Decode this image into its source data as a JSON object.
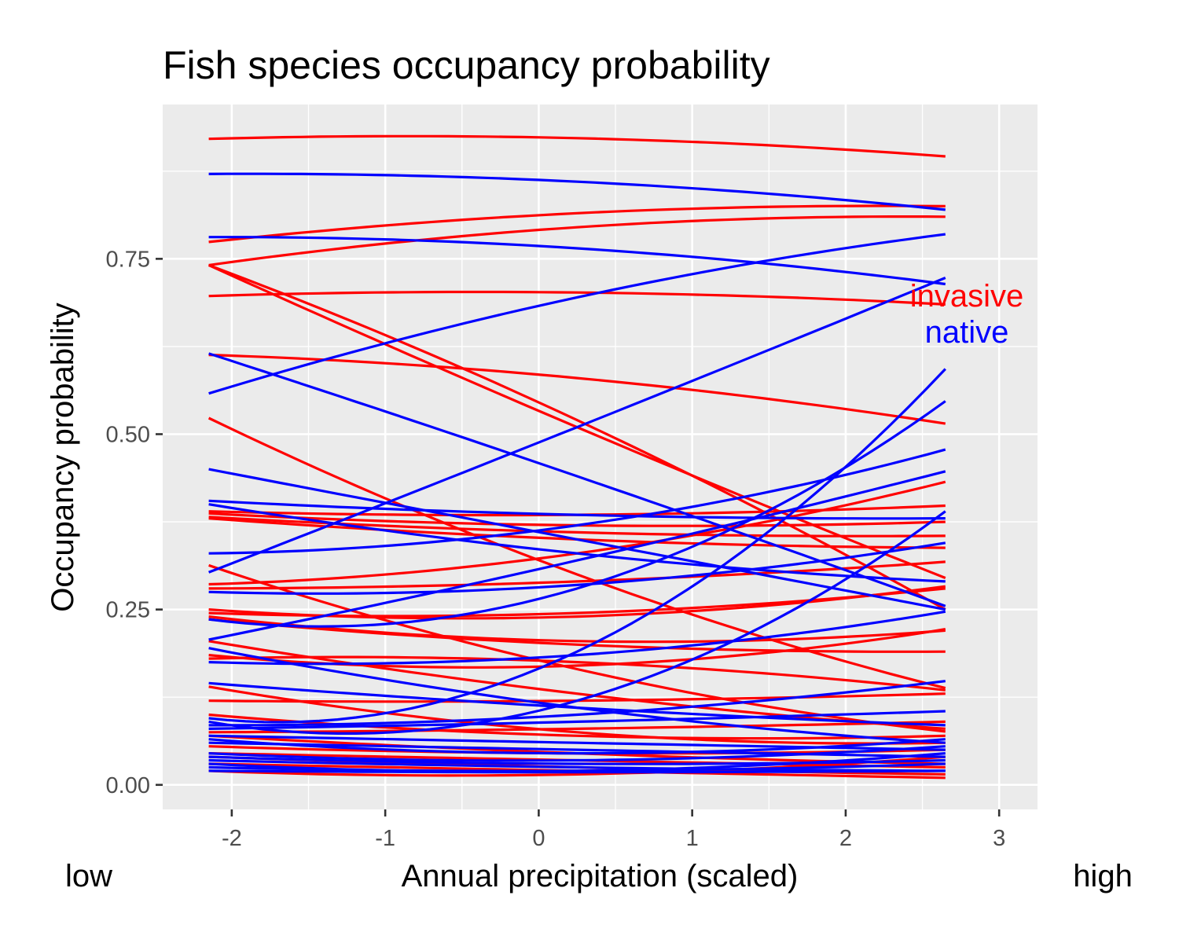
{
  "chart_data": {
    "type": "line",
    "title": "Fish species occupancy probability",
    "xlabel": "Annual precipitation (scaled)",
    "ylabel": "Occupancy probability",
    "xlim": [
      -2.45,
      3.25
    ],
    "ylim": [
      -0.035,
      0.97
    ],
    "x_ticks": [
      -2,
      -1,
      0,
      1,
      2,
      3
    ],
    "x_tick_labels": [
      "-2",
      "-1",
      "0",
      "1",
      "2",
      "3"
    ],
    "y_ticks": [
      0,
      0.25,
      0.5,
      0.75
    ],
    "y_tick_labels": [
      "0.00",
      "0.25",
      "0.50",
      "0.75"
    ],
    "x_range_of_curves": [
      -2.15,
      2.65
    ],
    "grid": true,
    "panel_background": "#ebebeb",
    "annotations": [
      {
        "text": "invasive",
        "color": "#ff0000"
      },
      {
        "text": "native",
        "color": "#0000ff"
      }
    ],
    "margin_labels": {
      "left": "low",
      "right": "high"
    },
    "colors": {
      "invasive": "#ff0000",
      "native": "#0000ff"
    },
    "series": [
      {
        "group": "invasive",
        "points": [
          [
            -2.15,
            0.921
          ],
          [
            0.25,
            0.922
          ],
          [
            2.65,
            0.896
          ]
        ]
      },
      {
        "group": "invasive",
        "points": [
          [
            -2.15,
            0.774
          ],
          [
            0.25,
            0.815
          ],
          [
            2.65,
            0.825
          ]
        ]
      },
      {
        "group": "invasive",
        "points": [
          [
            -2.15,
            0.741
          ],
          [
            0.25,
            0.795
          ],
          [
            2.65,
            0.81
          ]
        ]
      },
      {
        "group": "invasive",
        "points": [
          [
            -2.15,
            0.741
          ],
          [
            0.25,
            0.52
          ],
          [
            2.65,
            0.25
          ]
        ]
      },
      {
        "group": "invasive",
        "points": [
          [
            -2.15,
            0.741
          ],
          [
            0.25,
            0.51
          ],
          [
            2.65,
            0.295
          ]
        ]
      },
      {
        "group": "invasive",
        "points": [
          [
            -2.15,
            0.697
          ],
          [
            0.25,
            0.702
          ],
          [
            2.65,
            0.685
          ]
        ]
      },
      {
        "group": "invasive",
        "points": [
          [
            -2.15,
            0.613
          ],
          [
            0.25,
            0.58
          ],
          [
            2.65,
            0.515
          ]
        ]
      },
      {
        "group": "invasive",
        "points": [
          [
            -2.15,
            0.523
          ],
          [
            0.25,
            0.3
          ],
          [
            2.65,
            0.138
          ]
        ]
      },
      {
        "group": "invasive",
        "points": [
          [
            -2.15,
            0.39
          ],
          [
            0.25,
            0.385
          ],
          [
            2.65,
            0.398
          ]
        ]
      },
      {
        "group": "invasive",
        "points": [
          [
            -2.15,
            0.387
          ],
          [
            0.25,
            0.37
          ],
          [
            2.65,
            0.375
          ]
        ]
      },
      {
        "group": "invasive",
        "points": [
          [
            -2.15,
            0.382
          ],
          [
            0.25,
            0.36
          ],
          [
            2.65,
            0.355
          ]
        ]
      },
      {
        "group": "invasive",
        "points": [
          [
            -2.15,
            0.38
          ],
          [
            0.25,
            0.35
          ],
          [
            2.65,
            0.338
          ]
        ]
      },
      {
        "group": "invasive",
        "points": [
          [
            -2.15,
            0.286
          ],
          [
            0.25,
            0.33
          ],
          [
            2.65,
            0.432
          ]
        ]
      },
      {
        "group": "invasive",
        "points": [
          [
            -2.15,
            0.28
          ],
          [
            0.25,
            0.29
          ],
          [
            2.65,
            0.318
          ]
        ]
      },
      {
        "group": "invasive",
        "points": [
          [
            -2.15,
            0.313
          ],
          [
            0.25,
            0.165
          ],
          [
            2.65,
            0.076
          ]
        ]
      },
      {
        "group": "invasive",
        "points": [
          [
            -2.15,
            0.25
          ],
          [
            0.25,
            0.24
          ],
          [
            2.65,
            0.283
          ]
        ]
      },
      {
        "group": "invasive",
        "points": [
          [
            -2.15,
            0.245
          ],
          [
            0.25,
            0.245
          ],
          [
            2.65,
            0.28
          ]
        ]
      },
      {
        "group": "invasive",
        "points": [
          [
            -2.15,
            0.24
          ],
          [
            0.25,
            0.205
          ],
          [
            2.65,
            0.22
          ]
        ]
      },
      {
        "group": "invasive",
        "points": [
          [
            -2.15,
            0.236
          ],
          [
            0.25,
            0.2
          ],
          [
            2.65,
            0.19
          ]
        ]
      },
      {
        "group": "invasive",
        "points": [
          [
            -2.15,
            0.205
          ],
          [
            0.25,
            0.13
          ],
          [
            2.65,
            0.08
          ]
        ]
      },
      {
        "group": "invasive",
        "points": [
          [
            -2.15,
            0.185
          ],
          [
            0.25,
            0.17
          ],
          [
            2.65,
            0.222
          ]
        ]
      },
      {
        "group": "invasive",
        "points": [
          [
            -2.15,
            0.18
          ],
          [
            0.25,
            0.175
          ],
          [
            2.65,
            0.135
          ]
        ]
      },
      {
        "group": "invasive",
        "points": [
          [
            -2.15,
            0.14
          ],
          [
            0.25,
            0.075
          ],
          [
            2.65,
            0.06
          ]
        ]
      },
      {
        "group": "invasive",
        "points": [
          [
            -2.15,
            0.12
          ],
          [
            0.25,
            0.12
          ],
          [
            2.65,
            0.13
          ]
        ]
      },
      {
        "group": "invasive",
        "points": [
          [
            -2.15,
            0.1
          ],
          [
            0.25,
            0.07
          ],
          [
            2.65,
            0.07
          ]
        ]
      },
      {
        "group": "invasive",
        "points": [
          [
            -2.15,
            0.075
          ],
          [
            0.25,
            0.08
          ],
          [
            2.65,
            0.09
          ]
        ]
      },
      {
        "group": "invasive",
        "points": [
          [
            -2.15,
            0.07
          ],
          [
            0.25,
            0.045
          ],
          [
            2.65,
            0.03
          ]
        ]
      },
      {
        "group": "invasive",
        "points": [
          [
            -2.15,
            0.055
          ],
          [
            0.25,
            0.045
          ],
          [
            2.65,
            0.05
          ]
        ]
      },
      {
        "group": "invasive",
        "points": [
          [
            -2.15,
            0.045
          ],
          [
            0.25,
            0.035
          ],
          [
            2.65,
            0.025
          ]
        ]
      },
      {
        "group": "invasive",
        "points": [
          [
            -2.15,
            0.04
          ],
          [
            0.25,
            0.025
          ],
          [
            2.65,
            0.015
          ]
        ]
      },
      {
        "group": "invasive",
        "points": [
          [
            -2.15,
            0.03
          ],
          [
            0.25,
            0.02
          ],
          [
            2.65,
            0.01
          ]
        ]
      },
      {
        "group": "invasive",
        "points": [
          [
            -2.15,
            0.02
          ],
          [
            0.25,
            0.015
          ],
          [
            2.65,
            0.04
          ]
        ]
      },
      {
        "group": "native",
        "points": [
          [
            -2.15,
            0.871
          ],
          [
            0.25,
            0.86
          ],
          [
            2.65,
            0.82
          ]
        ]
      },
      {
        "group": "native",
        "points": [
          [
            -2.15,
            0.781
          ],
          [
            0.25,
            0.765
          ],
          [
            2.65,
            0.714
          ]
        ]
      },
      {
        "group": "native",
        "points": [
          [
            -2.15,
            0.558
          ],
          [
            0.25,
            0.695
          ],
          [
            2.65,
            0.785
          ]
        ]
      },
      {
        "group": "native",
        "points": [
          [
            -2.15,
            0.615
          ],
          [
            0.25,
            0.44
          ],
          [
            2.65,
            0.255
          ]
        ]
      },
      {
        "group": "native",
        "points": [
          [
            -2.15,
            0.303
          ],
          [
            0.25,
            0.51
          ],
          [
            2.65,
            0.723
          ]
        ]
      },
      {
        "group": "native",
        "points": [
          [
            -2.15,
            0.45
          ],
          [
            0.25,
            0.35
          ],
          [
            2.65,
            0.25
          ]
        ]
      },
      {
        "group": "native",
        "points": [
          [
            -2.15,
            0.405
          ],
          [
            0.25,
            0.385
          ],
          [
            2.65,
            0.38
          ]
        ]
      },
      {
        "group": "native",
        "points": [
          [
            -2.15,
            0.4
          ],
          [
            0.25,
            0.33
          ],
          [
            2.65,
            0.29
          ]
        ]
      },
      {
        "group": "native",
        "points": [
          [
            -2.15,
            0.33
          ],
          [
            0.25,
            0.37
          ],
          [
            2.65,
            0.478
          ]
        ]
      },
      {
        "group": "native",
        "points": [
          [
            -2.15,
            0.275
          ],
          [
            0.25,
            0.285
          ],
          [
            2.65,
            0.345
          ]
        ]
      },
      {
        "group": "native",
        "points": [
          [
            -2.15,
            0.236
          ],
          [
            0.25,
            0.28
          ],
          [
            2.65,
            0.547
          ]
        ]
      },
      {
        "group": "native",
        "points": [
          [
            -2.15,
            0.207
          ],
          [
            0.25,
            0.32
          ],
          [
            2.65,
            0.447
          ]
        ]
      },
      {
        "group": "native",
        "points": [
          [
            -2.15,
            0.195
          ],
          [
            0.25,
            0.11
          ],
          [
            2.65,
            0.06
          ]
        ]
      },
      {
        "group": "native",
        "points": [
          [
            -2.15,
            0.175
          ],
          [
            0.25,
            0.185
          ],
          [
            2.65,
            0.247
          ]
        ]
      },
      {
        "group": "native",
        "points": [
          [
            -2.15,
            0.145
          ],
          [
            0.25,
            0.11
          ],
          [
            2.65,
            0.085
          ]
        ]
      },
      {
        "group": "native",
        "points": [
          [
            -2.15,
            0.095
          ],
          [
            0.25,
            0.19
          ],
          [
            2.65,
            0.593
          ]
        ]
      },
      {
        "group": "native",
        "points": [
          [
            -2.15,
            0.09
          ],
          [
            0.25,
            0.12
          ],
          [
            2.65,
            0.39
          ]
        ]
      },
      {
        "group": "native",
        "points": [
          [
            -2.15,
            0.085
          ],
          [
            0.25,
            0.1
          ],
          [
            2.65,
            0.148
          ]
        ]
      },
      {
        "group": "native",
        "points": [
          [
            -2.15,
            0.08
          ],
          [
            0.25,
            0.09
          ],
          [
            2.65,
            0.105
          ]
        ]
      },
      {
        "group": "native",
        "points": [
          [
            -2.15,
            0.07
          ],
          [
            0.25,
            0.06
          ],
          [
            2.65,
            0.05
          ]
        ]
      },
      {
        "group": "native",
        "points": [
          [
            -2.15,
            0.065
          ],
          [
            0.25,
            0.045
          ],
          [
            2.65,
            0.065
          ]
        ]
      },
      {
        "group": "native",
        "points": [
          [
            -2.15,
            0.06
          ],
          [
            0.25,
            0.05
          ],
          [
            2.65,
            0.04
          ]
        ]
      },
      {
        "group": "native",
        "points": [
          [
            -2.15,
            0.045
          ],
          [
            0.25,
            0.035
          ],
          [
            2.65,
            0.055
          ]
        ]
      },
      {
        "group": "native",
        "points": [
          [
            -2.15,
            0.04
          ],
          [
            0.25,
            0.03
          ],
          [
            2.65,
            0.035
          ]
        ]
      },
      {
        "group": "native",
        "points": [
          [
            -2.15,
            0.035
          ],
          [
            0.25,
            0.025
          ],
          [
            2.65,
            0.02
          ]
        ]
      },
      {
        "group": "native",
        "points": [
          [
            -2.15,
            0.03
          ],
          [
            0.25,
            0.02
          ],
          [
            2.65,
            0.045
          ]
        ]
      },
      {
        "group": "native",
        "points": [
          [
            -2.15,
            0.025
          ],
          [
            0.25,
            0.02
          ],
          [
            2.65,
            0.03
          ]
        ]
      },
      {
        "group": "native",
        "points": [
          [
            -2.15,
            0.02
          ],
          [
            0.25,
            0.018
          ],
          [
            2.65,
            0.02
          ]
        ]
      }
    ]
  }
}
